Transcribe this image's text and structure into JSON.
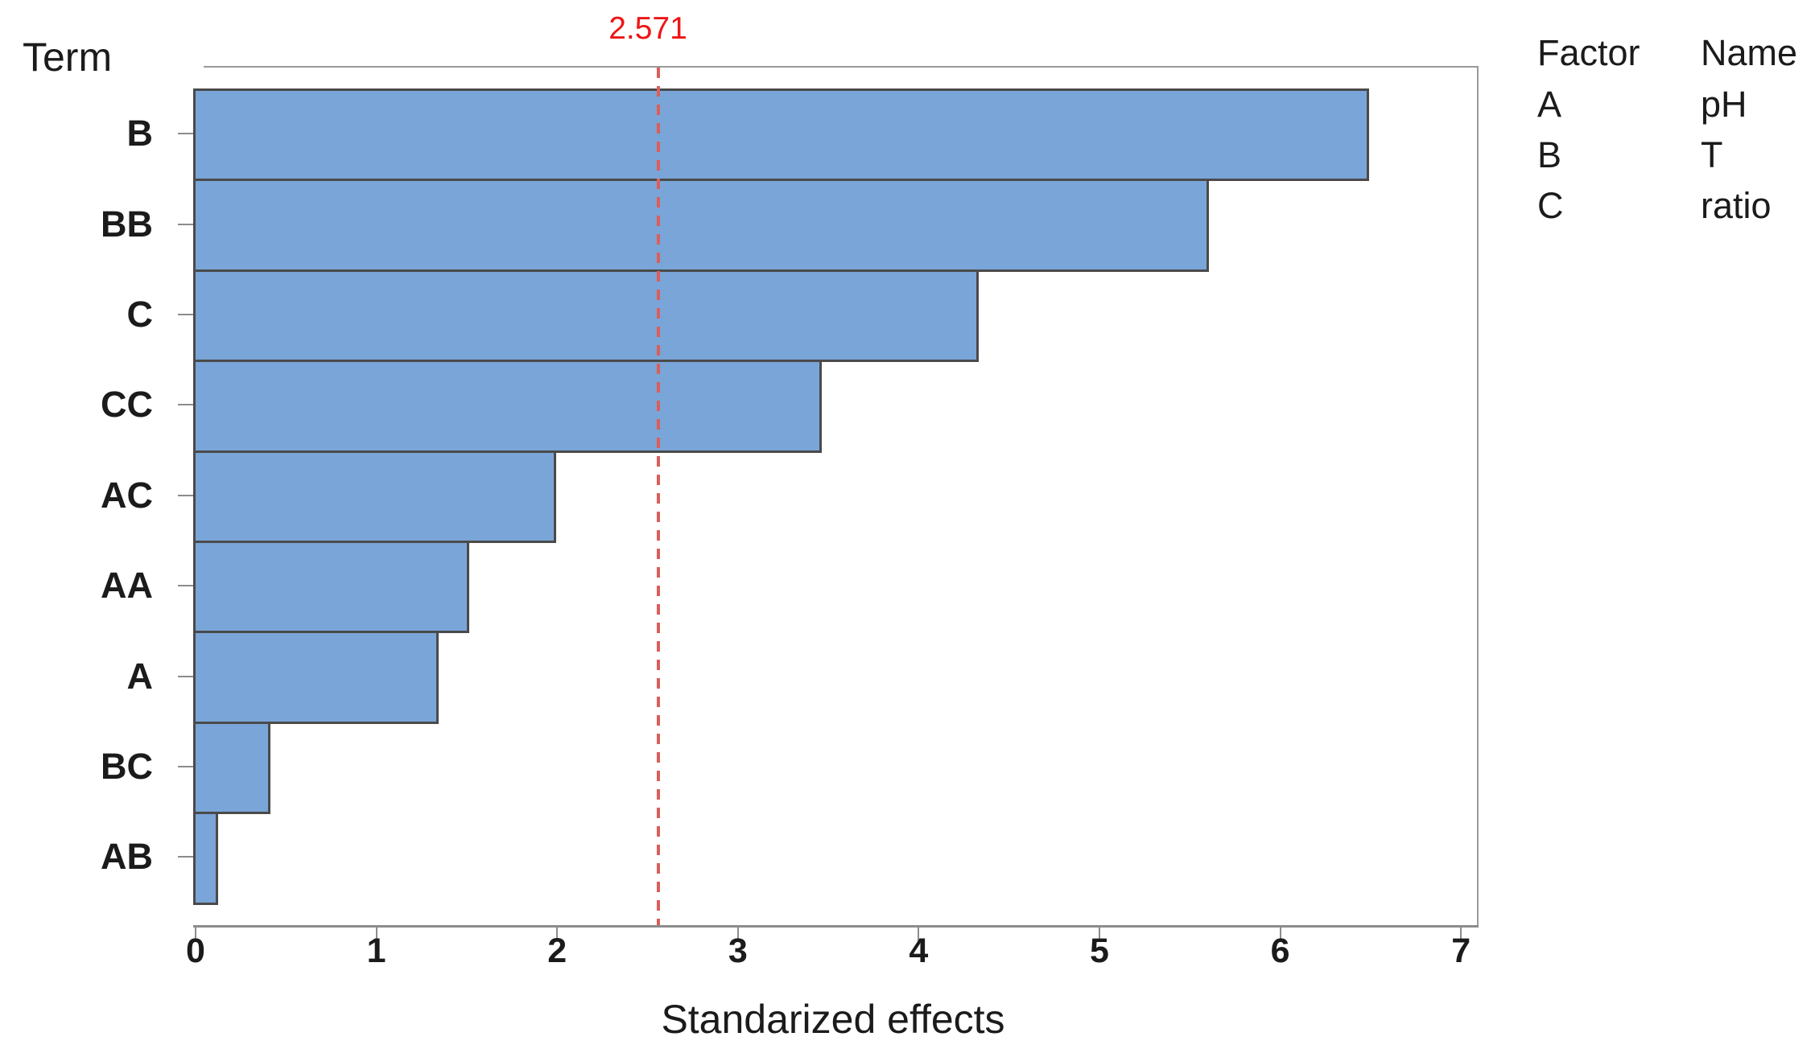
{
  "chart_data": {
    "type": "bar",
    "orientation": "horizontal",
    "title": "",
    "term_axis_label": "Term",
    "xlabel": "Standarized effects",
    "categories": [
      "B",
      "BB",
      "C",
      "CC",
      "AC",
      "AA",
      "A",
      "BC",
      "AB"
    ],
    "values": [
      6.48,
      5.59,
      4.32,
      3.45,
      1.98,
      1.5,
      1.33,
      0.4,
      0.11
    ],
    "xlim": [
      0,
      7
    ],
    "xticks": [
      0,
      1,
      2,
      3,
      4,
      5,
      6,
      7
    ],
    "grid": "off",
    "reference_line": {
      "value": 2.571,
      "label": "2.571"
    },
    "legend": {
      "position": "top-right",
      "headers": [
        "Factor",
        "Name"
      ],
      "rows": [
        {
          "factor": "A",
          "name": "pH"
        },
        {
          "factor": "B",
          "name": "T"
        },
        {
          "factor": "C",
          "name": "ratio"
        }
      ]
    },
    "colors": {
      "bar_fill": "#7aa5d8",
      "bar_border": "#4a4a4a",
      "frame": "#9a9a9a",
      "axis": "#8c8c8c",
      "ref_line": "#d95f5c",
      "ref_text": "#ee1515",
      "text": "#1b1b1b"
    }
  }
}
